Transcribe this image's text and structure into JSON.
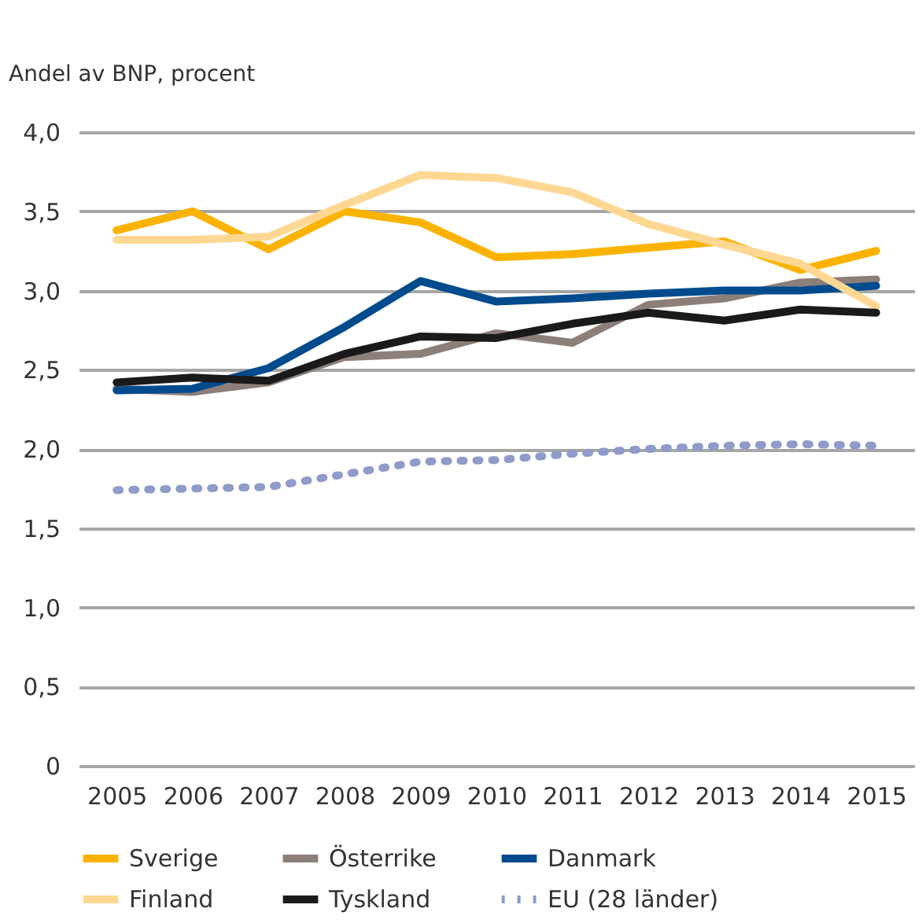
{
  "chart_data": {
    "type": "line",
    "ylabel": "Andel av BNP, procent",
    "categories": [
      "2005",
      "2006",
      "2007",
      "2008",
      "2009",
      "2010",
      "2011",
      "2012",
      "2013",
      "2014",
      "2015"
    ],
    "series": [
      {
        "name": "Sverige",
        "color": "#fbb300",
        "line_style": "solid",
        "values": [
          3.38,
          3.5,
          3.26,
          3.5,
          3.43,
          3.21,
          3.23,
          3.27,
          3.31,
          3.13,
          3.25
        ]
      },
      {
        "name": "Österrike",
        "color": "#8c7f7a",
        "line_style": "solid",
        "values": [
          2.38,
          2.36,
          2.42,
          2.58,
          2.6,
          2.73,
          2.67,
          2.91,
          2.95,
          3.05,
          3.07
        ]
      },
      {
        "name": "Danmark",
        "color": "#004b8d",
        "line_style": "solid",
        "values": [
          2.37,
          2.38,
          2.51,
          2.77,
          3.06,
          2.93,
          2.95,
          2.98,
          3.0,
          3.0,
          3.03
        ]
      },
      {
        "name": "Finland",
        "color": "#fed893",
        "line_style": "solid",
        "values": [
          3.32,
          3.32,
          3.34,
          3.54,
          3.73,
          3.71,
          3.62,
          3.42,
          3.29,
          3.17,
          2.9
        ]
      },
      {
        "name": "Tyskland",
        "color": "#1a1a1a",
        "line_style": "solid",
        "values": [
          2.42,
          2.45,
          2.43,
          2.6,
          2.71,
          2.7,
          2.79,
          2.86,
          2.81,
          2.88,
          2.86
        ]
      },
      {
        "name": "EU (28 länder)",
        "color": "#8f9bc8",
        "line_style": "dotted",
        "values": [
          1.74,
          1.75,
          1.76,
          1.84,
          1.92,
          1.93,
          1.97,
          2.0,
          2.02,
          2.03,
          2.02
        ]
      }
    ],
    "ylim": [
      0,
      4.0
    ],
    "yticks": [
      {
        "value": 0,
        "label": "0"
      },
      {
        "value": 0.5,
        "label": "0,5"
      },
      {
        "value": 1,
        "label": "1,0"
      },
      {
        "value": 1.5,
        "label": "1,5"
      },
      {
        "value": 2,
        "label": "2,0"
      },
      {
        "value": 2.5,
        "label": "2,5"
      },
      {
        "value": 3,
        "label": "3,0"
      },
      {
        "value": 3.5,
        "label": "3,5"
      },
      {
        "value": 4,
        "label": "4,0"
      }
    ],
    "grid": "y",
    "legend": "bottom",
    "marker": "none"
  }
}
